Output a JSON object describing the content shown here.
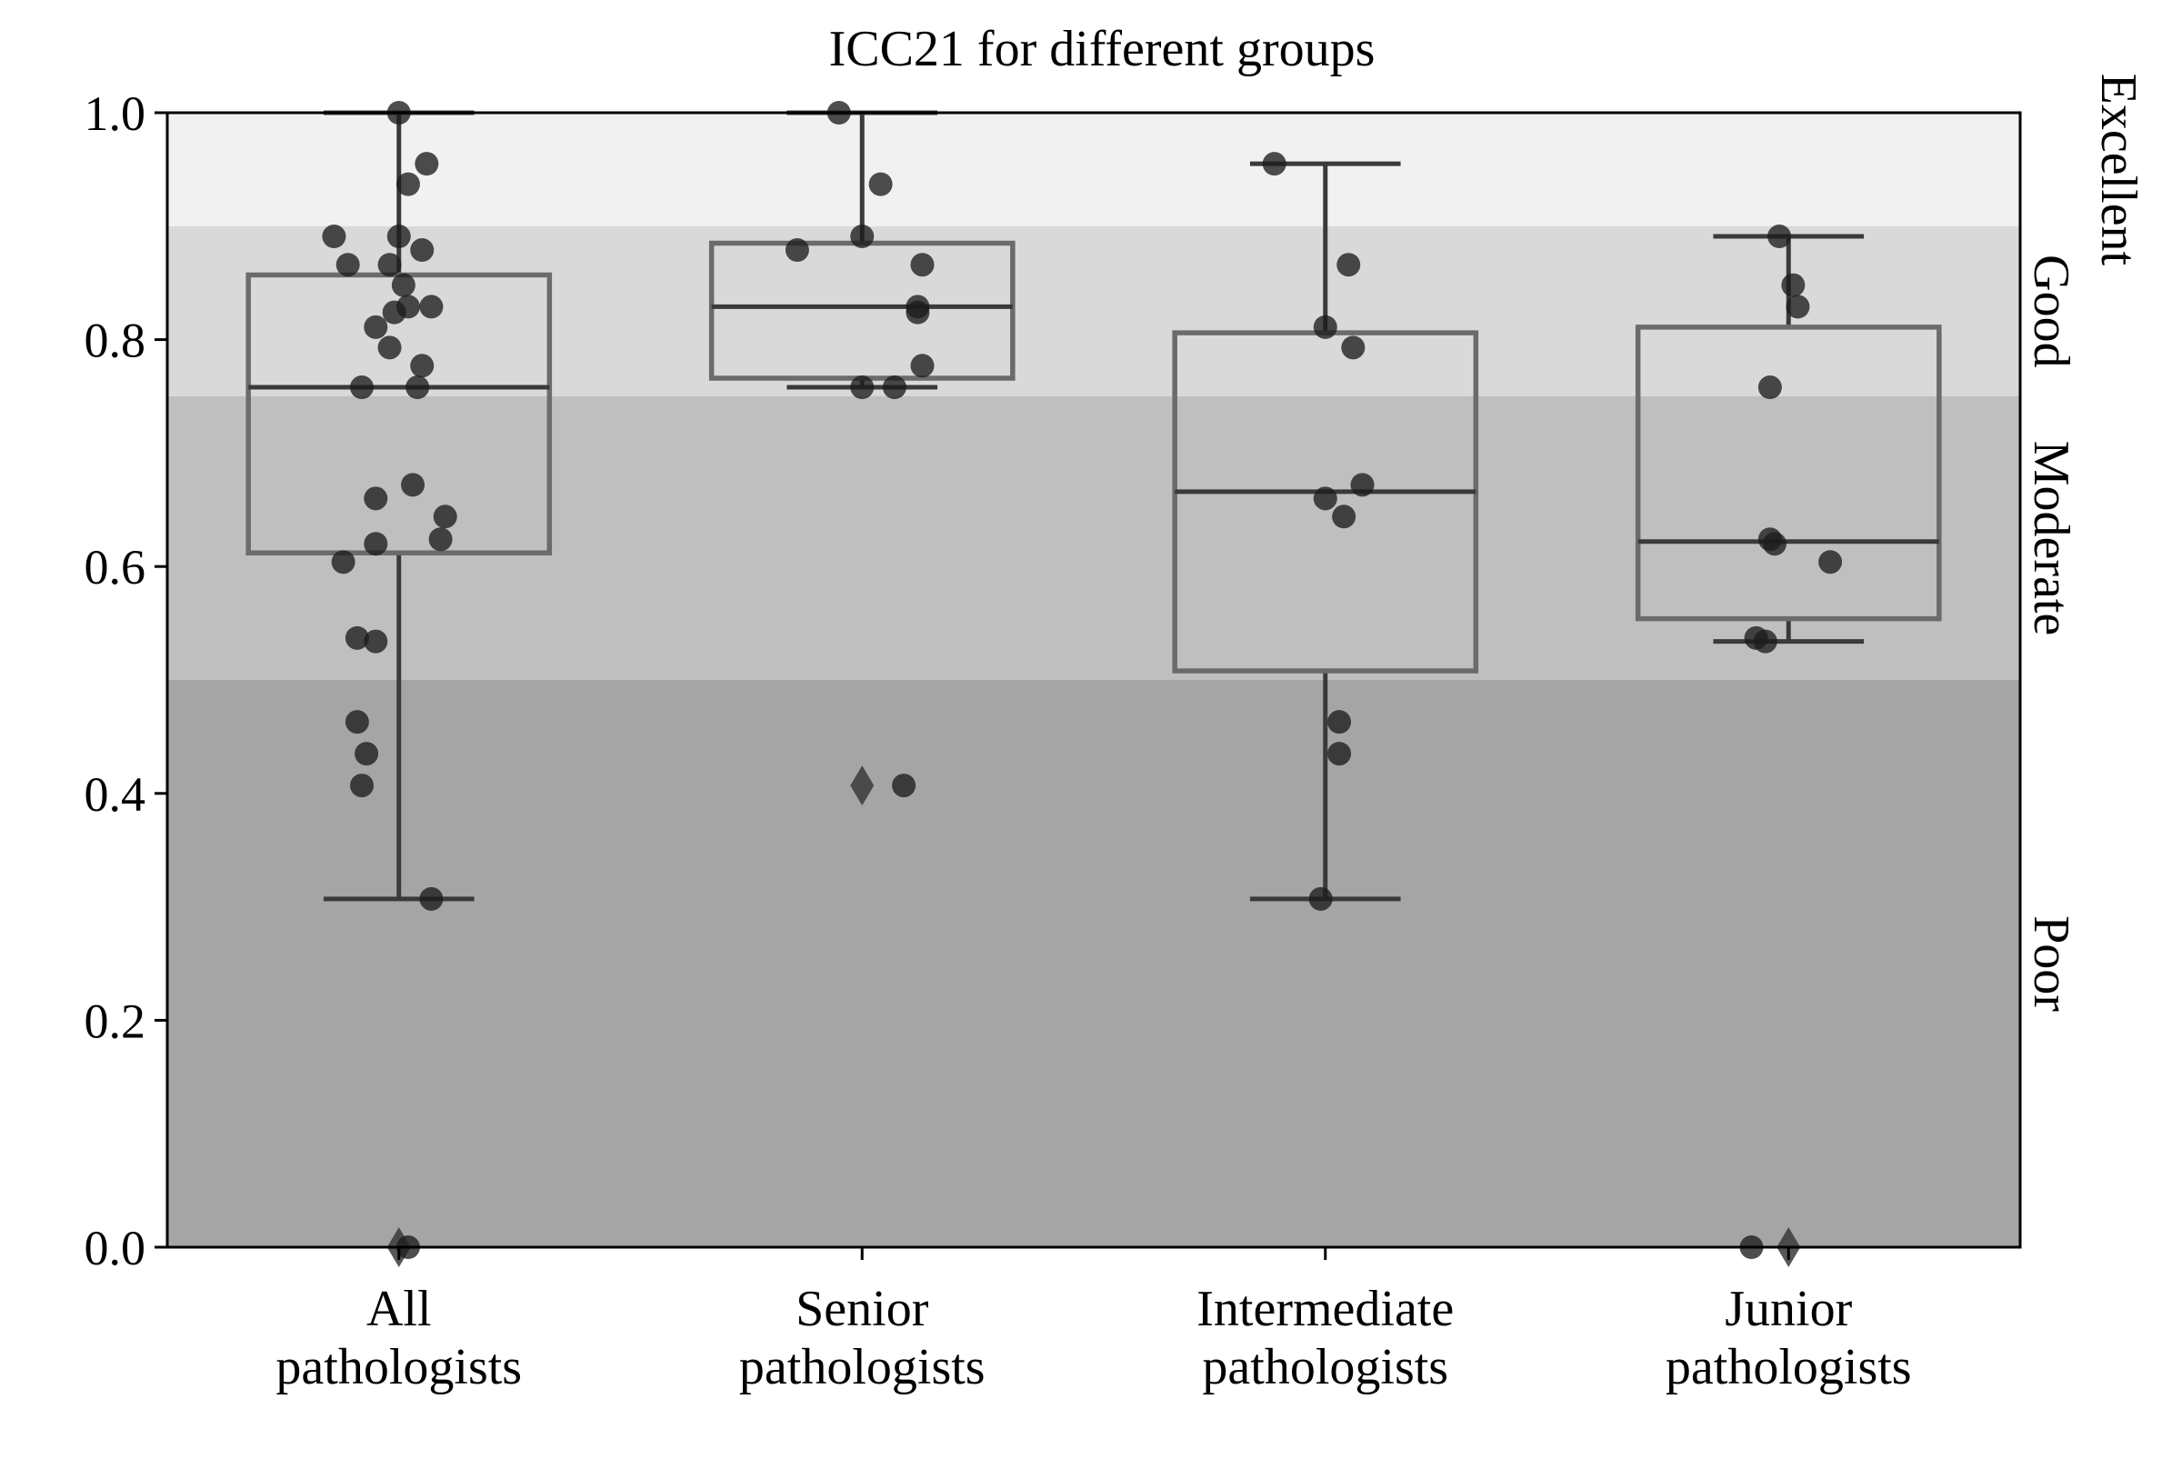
{
  "chart_data": {
    "type": "box",
    "title": "ICC21 for different groups",
    "xlabel": "",
    "ylabel": "",
    "ylim": [
      0,
      1.0
    ],
    "yticks": [
      0.0,
      0.2,
      0.4,
      0.6,
      0.8,
      1.0
    ],
    "ytick_labels": [
      "0.0",
      "0.2",
      "0.4",
      "0.6",
      "0.8",
      "1.0"
    ],
    "grid": false,
    "legend": "none",
    "categories": [
      {
        "line1": "All",
        "line2": "pathologists"
      },
      {
        "line1": "Senior",
        "line2": "pathologists"
      },
      {
        "line1": "Intermediate",
        "line2": "pathologists"
      },
      {
        "line1": "Junior",
        "line2": "pathologists"
      }
    ],
    "bands": [
      {
        "label": "Excellent",
        "from": 0.9,
        "to": 1.0,
        "color": "#f1f1f1"
      },
      {
        "label": "Good",
        "from": 0.75,
        "to": 0.9,
        "color": "#d9d9d9"
      },
      {
        "label": "Moderate",
        "from": 0.5,
        "to": 0.75,
        "color": "#bfbfbf"
      },
      {
        "label": "Poor",
        "from": 0.0,
        "to": 0.5,
        "color": "#a5a5a5"
      }
    ],
    "boxes": [
      {
        "q1": 0.612,
        "median": 0.758,
        "q3": 0.857,
        "whisker_low": 0.307,
        "whisker_high": 1.0,
        "outliers": [
          0.0
        ]
      },
      {
        "q1": 0.766,
        "median": 0.829,
        "q3": 0.885,
        "whisker_low": 0.758,
        "whisker_high": 1.0,
        "outliers": [
          0.407
        ]
      },
      {
        "q1": 0.508,
        "median": 0.666,
        "q3": 0.806,
        "whisker_low": 0.307,
        "whisker_high": 0.955,
        "outliers": []
      },
      {
        "q1": 0.554,
        "median": 0.622,
        "q3": 0.811,
        "whisker_low": 0.534,
        "whisker_high": 0.891,
        "outliers": [
          0.0
        ]
      }
    ],
    "points": [
      [
        {
          "dx": 0.0,
          "y": 1.0
        },
        {
          "dx": 0.06,
          "y": 0.955
        },
        {
          "dx": 0.02,
          "y": 0.937
        },
        {
          "dx": -0.14,
          "y": 0.891
        },
        {
          "dx": 0.0,
          "y": 0.891
        },
        {
          "dx": 0.05,
          "y": 0.879
        },
        {
          "dx": -0.11,
          "y": 0.866
        },
        {
          "dx": -0.02,
          "y": 0.866
        },
        {
          "dx": 0.01,
          "y": 0.848
        },
        {
          "dx": 0.07,
          "y": 0.829
        },
        {
          "dx": 0.02,
          "y": 0.829
        },
        {
          "dx": -0.01,
          "y": 0.824
        },
        {
          "dx": -0.05,
          "y": 0.811
        },
        {
          "dx": -0.02,
          "y": 0.793
        },
        {
          "dx": 0.05,
          "y": 0.777
        },
        {
          "dx": -0.08,
          "y": 0.758
        },
        {
          "dx": 0.04,
          "y": 0.758
        },
        {
          "dx": 0.03,
          "y": 0.672
        },
        {
          "dx": -0.05,
          "y": 0.66
        },
        {
          "dx": 0.1,
          "y": 0.644
        },
        {
          "dx": 0.09,
          "y": 0.624
        },
        {
          "dx": -0.05,
          "y": 0.62
        },
        {
          "dx": -0.12,
          "y": 0.604
        },
        {
          "dx": -0.09,
          "y": 0.537
        },
        {
          "dx": -0.05,
          "y": 0.534
        },
        {
          "dx": -0.09,
          "y": 0.463
        },
        {
          "dx": -0.07,
          "y": 0.435
        },
        {
          "dx": -0.08,
          "y": 0.407
        },
        {
          "dx": 0.07,
          "y": 0.307
        },
        {
          "dx": 0.02,
          "y": 0.0
        }
      ],
      [
        {
          "dx": -0.05,
          "y": 1.0
        },
        {
          "dx": 0.04,
          "y": 0.937
        },
        {
          "dx": 0.0,
          "y": 0.891
        },
        {
          "dx": -0.14,
          "y": 0.879
        },
        {
          "dx": 0.13,
          "y": 0.866
        },
        {
          "dx": 0.12,
          "y": 0.829
        },
        {
          "dx": 0.12,
          "y": 0.824
        },
        {
          "dx": 0.13,
          "y": 0.777
        },
        {
          "dx": 0.0,
          "y": 0.758
        },
        {
          "dx": 0.07,
          "y": 0.758
        },
        {
          "dx": 0.09,
          "y": 0.407
        }
      ],
      [
        {
          "dx": -0.11,
          "y": 0.955
        },
        {
          "dx": 0.05,
          "y": 0.866
        },
        {
          "dx": 0.0,
          "y": 0.811
        },
        {
          "dx": 0.06,
          "y": 0.793
        },
        {
          "dx": 0.08,
          "y": 0.672
        },
        {
          "dx": 0.0,
          "y": 0.66
        },
        {
          "dx": 0.04,
          "y": 0.644
        },
        {
          "dx": 0.03,
          "y": 0.463
        },
        {
          "dx": 0.03,
          "y": 0.435
        },
        {
          "dx": -0.01,
          "y": 0.307
        }
      ],
      [
        {
          "dx": -0.02,
          "y": 0.891
        },
        {
          "dx": 0.01,
          "y": 0.848
        },
        {
          "dx": 0.02,
          "y": 0.829
        },
        {
          "dx": -0.04,
          "y": 0.758
        },
        {
          "dx": -0.04,
          "y": 0.624
        },
        {
          "dx": -0.03,
          "y": 0.62
        },
        {
          "dx": 0.09,
          "y": 0.604
        },
        {
          "dx": -0.07,
          "y": 0.537
        },
        {
          "dx": -0.05,
          "y": 0.534
        },
        {
          "dx": -0.08,
          "y": 0.0
        }
      ]
    ],
    "colors": {
      "box_edge": "#6b6b6b",
      "median": "#3a3a3a",
      "whisker": "#3a3a3a",
      "point": "#1c1c1c",
      "outlier": "#3a3a3a",
      "axis": "#000000"
    }
  }
}
